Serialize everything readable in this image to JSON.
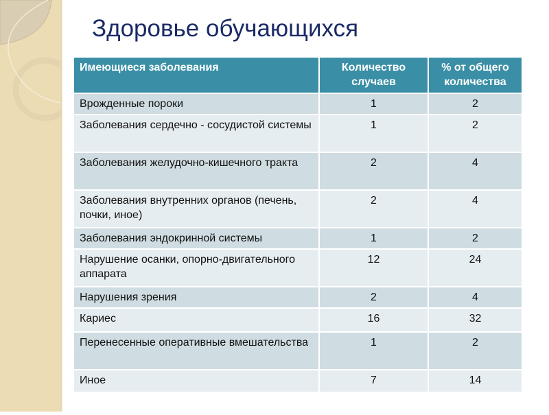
{
  "title": "Здоровье обучающихся",
  "table": {
    "headers": [
      "Имеющиеся заболевания",
      "Количество случаев",
      "% от общего количества"
    ],
    "rows": [
      [
        "Врожденные пороки",
        "1",
        "2"
      ],
      [
        "Заболевания сердечно - сосудистой системы",
        "1",
        "2"
      ],
      [
        "Заболевания желудочно-кишечного тракта",
        "2",
        "4"
      ],
      [
        "Заболевания внутренних органов (печень, почки, иное)",
        "2",
        "4"
      ],
      [
        "Заболевания эндокринной системы",
        "1",
        "2"
      ],
      [
        "Нарушение осанки, опорно-двигательного аппарата",
        "12",
        "24"
      ],
      [
        "Нарушения зрения",
        "2",
        "4"
      ],
      [
        "Кариес",
        "16",
        "32"
      ],
      [
        "Перенесенные оперативные вмешательства",
        "1",
        "2"
      ],
      [
        "Иное",
        "7",
        "14"
      ]
    ]
  },
  "colors": {
    "header": "#3a8fa6",
    "row_dark": "#cfdce1",
    "row_light": "#e6edf0",
    "title": "#1a2a66",
    "sidebar": "#ecdcb4"
  }
}
